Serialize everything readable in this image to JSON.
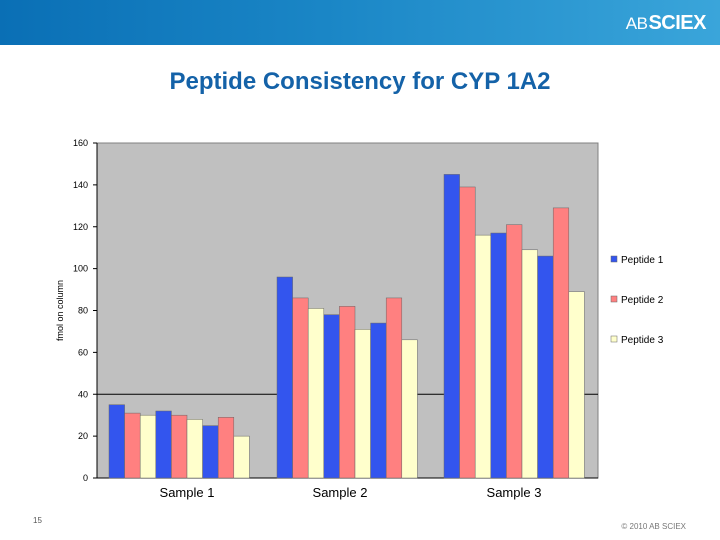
{
  "header": {
    "logo": "AB SCIEX",
    "logo_ab": "AB",
    "logo_sciex": "SCIEX"
  },
  "slide": {
    "title": "Peptide Consistency for CYP 1A2",
    "page_number": "15",
    "copyright": "© 2010 AB SCIEX"
  },
  "chart_data": {
    "type": "bar",
    "title": "",
    "xlabel": "",
    "ylabel": "fmol on column",
    "ylim": [
      0,
      160
    ],
    "yticks": [
      0,
      20,
      40,
      60,
      80,
      100,
      120,
      140,
      160
    ],
    "grid": "horizontal-at-40",
    "legend_position": "right",
    "categories": [
      "Sample 1",
      "Sample 2",
      "Sample 3"
    ],
    "series": [
      {
        "name": "Peptide 1",
        "color": "#3355ee"
      },
      {
        "name": "Peptide 2",
        "color": "#ff8080"
      },
      {
        "name": "Peptide 3",
        "color": "#ffffcc"
      }
    ],
    "bar_groups": [
      {
        "category": "Sample 1",
        "values": [
          35,
          31,
          30,
          32,
          30,
          28,
          25,
          29,
          20
        ]
      },
      {
        "category": "Sample 2",
        "values": [
          96,
          86,
          81,
          78,
          82,
          71,
          74,
          86,
          66
        ]
      },
      {
        "category": "Sample 3",
        "values": [
          145,
          139,
          116,
          117,
          121,
          109,
          106,
          129,
          89
        ]
      }
    ],
    "bar_series_order": [
      0,
      1,
      2,
      0,
      1,
      2,
      0,
      1,
      2
    ]
  }
}
